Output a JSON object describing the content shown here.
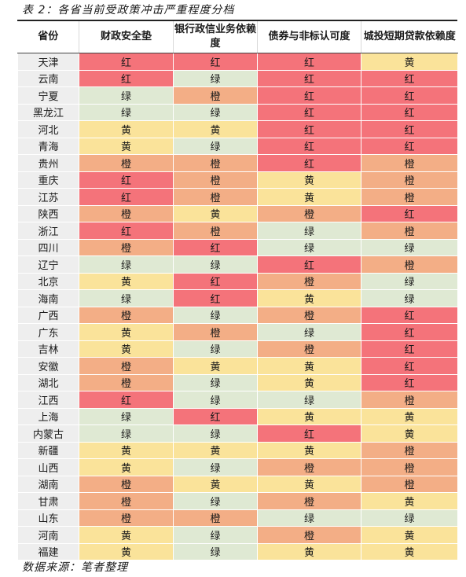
{
  "caption": "表 2：各省当前受政策冲击严重程度分档",
  "source": "数据来源：笔者整理",
  "colors": {
    "红": "#f4737a",
    "橙": "#f3ae86",
    "黄": "#fae39a",
    "绿": "#dfe9d3"
  },
  "table": {
    "headers": [
      "省份",
      "财政安全垫",
      "银行政信业务依赖度",
      "债券与非标认可度",
      "城投短期贷款依赖度"
    ],
    "rows": [
      [
        "天津",
        "红",
        "红",
        "红",
        "黄"
      ],
      [
        "云南",
        "红",
        "绿",
        "红",
        "红"
      ],
      [
        "宁夏",
        "绿",
        "橙",
        "红",
        "红"
      ],
      [
        "黑龙江",
        "绿",
        "绿",
        "红",
        "红"
      ],
      [
        "河北",
        "黄",
        "黄",
        "红",
        "红"
      ],
      [
        "青海",
        "黄",
        "绿",
        "红",
        "红"
      ],
      [
        "贵州",
        "橙",
        "橙",
        "红",
        "橙"
      ],
      [
        "重庆",
        "红",
        "橙",
        "黄",
        "橙"
      ],
      [
        "江苏",
        "红",
        "橙",
        "黄",
        "橙"
      ],
      [
        "陕西",
        "橙",
        "黄",
        "橙",
        "红"
      ],
      [
        "浙江",
        "红",
        "橙",
        "绿",
        "橙"
      ],
      [
        "四川",
        "橙",
        "红",
        "绿",
        "绿"
      ],
      [
        "辽宁",
        "绿",
        "绿",
        "红",
        "橙"
      ],
      [
        "北京",
        "黄",
        "红",
        "橙",
        "绿"
      ],
      [
        "海南",
        "绿",
        "红",
        "黄",
        "绿"
      ],
      [
        "广西",
        "橙",
        "绿",
        "橙",
        "红"
      ],
      [
        "广东",
        "黄",
        "橙",
        "绿",
        "红"
      ],
      [
        "吉林",
        "黄",
        "绿",
        "橙",
        "红"
      ],
      [
        "安徽",
        "橙",
        "黄",
        "黄",
        "红"
      ],
      [
        "湖北",
        "橙",
        "绿",
        "黄",
        "红"
      ],
      [
        "江西",
        "红",
        "绿",
        "绿",
        "橙"
      ],
      [
        "上海",
        "绿",
        "红",
        "黄",
        "黄"
      ],
      [
        "内蒙古",
        "绿",
        "绿",
        "红",
        "黄"
      ],
      [
        "新疆",
        "黄",
        "黄",
        "黄",
        "橙"
      ],
      [
        "山西",
        "黄",
        "绿",
        "橙",
        "橙"
      ],
      [
        "湖南",
        "橙",
        "黄",
        "黄",
        "橙"
      ],
      [
        "甘肃",
        "橙",
        "绿",
        "橙",
        "黄"
      ],
      [
        "山东",
        "橙",
        "橙",
        "绿",
        "绿"
      ],
      [
        "河南",
        "黄",
        "绿",
        "橙",
        "黄"
      ],
      [
        "福建",
        "黄",
        "绿",
        "黄",
        "黄"
      ]
    ]
  }
}
